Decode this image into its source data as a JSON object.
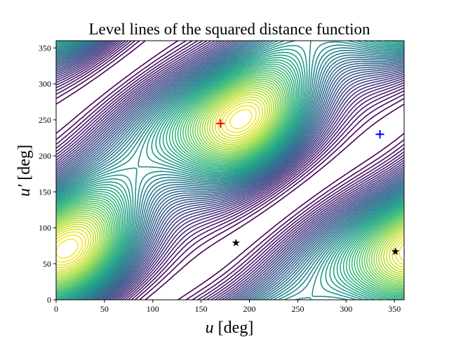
{
  "chart_data": {
    "type": "contour",
    "title": "Level lines of the squared distance function",
    "xlabel_var": "u",
    "xlabel_unit": " [deg]",
    "ylabel_var": "u′",
    "ylabel_unit": " [deg]",
    "xlim": [
      0,
      360
    ],
    "ylim": [
      0,
      360
    ],
    "xticks": [
      "0",
      "50",
      "100",
      "150",
      "200",
      "250",
      "300",
      "350"
    ],
    "yticks": [
      "0",
      "50",
      "100",
      "150",
      "200",
      "250",
      "300",
      "350"
    ],
    "colormap": "viridis",
    "levels": 60,
    "grid": false,
    "markers": [
      {
        "type": "plus",
        "color": "#ff0000",
        "x": 170,
        "y": 245
      },
      {
        "type": "plus",
        "color": "#0000ff",
        "x": 335,
        "y": 230
      },
      {
        "type": "star",
        "color": "#000000",
        "x": 186,
        "y": 79
      },
      {
        "type": "star",
        "color": "#000000",
        "x": 351,
        "y": 67
      }
    ]
  }
}
